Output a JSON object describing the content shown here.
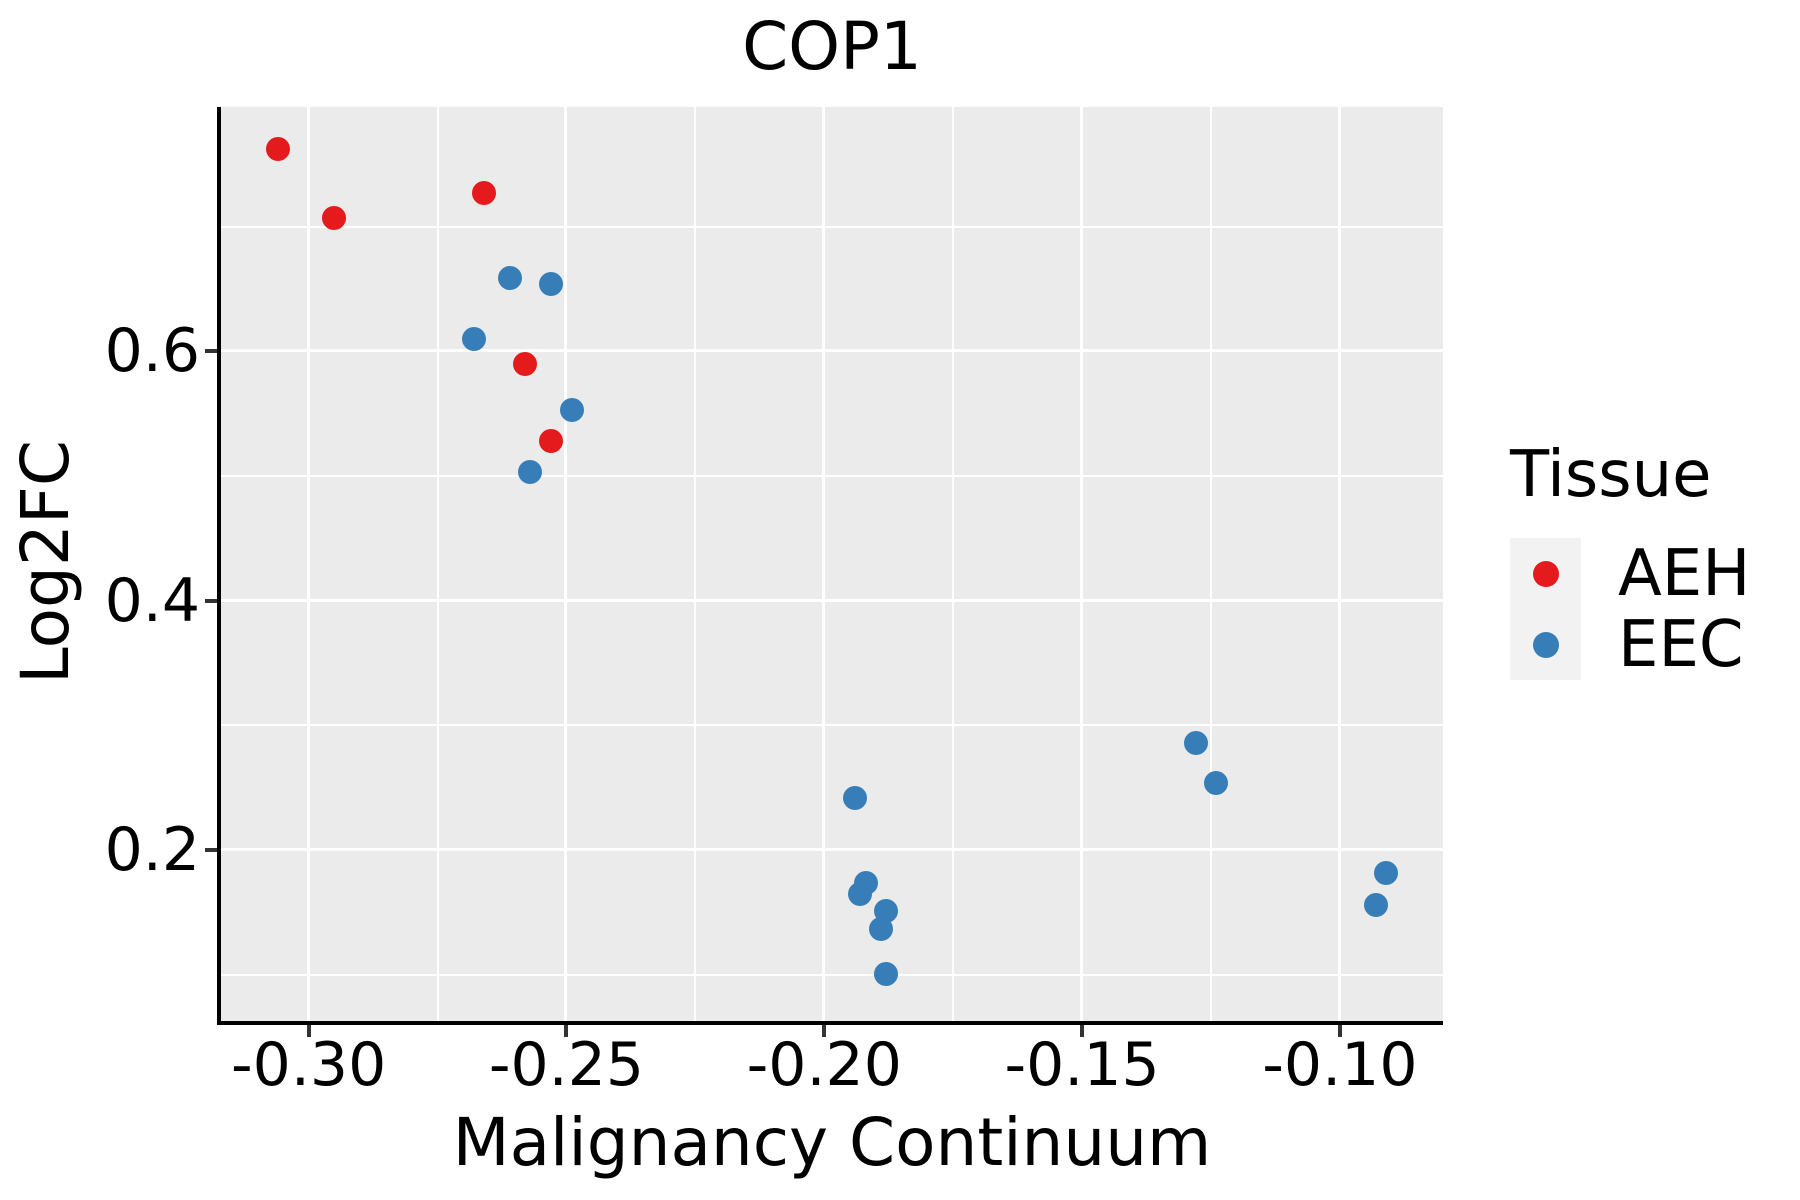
{
  "title": "COP1",
  "legend": {
    "title": "Tissue",
    "entries": [
      {
        "label": "AEH",
        "color": "#E41A1C"
      },
      {
        "label": "EEC",
        "color": "#377EB8"
      }
    ]
  },
  "colors": {
    "panel_background": "#EBEBEB",
    "gridline": "#FFFFFF",
    "axis_line": "#000000",
    "legend_key_background": "#F2F2F2",
    "aeh": "#E41A1C",
    "eec": "#377EB8"
  },
  "chart_data": {
    "type": "scatter",
    "title": "COP1",
    "xlabel": "Malignancy Continuum",
    "ylabel": "Log2FC",
    "xlim": [
      -0.317,
      -0.08
    ],
    "ylim": [
      0.063,
      0.796
    ],
    "x_ticks": [
      -0.3,
      -0.25,
      -0.2,
      -0.15,
      -0.1
    ],
    "x_tick_labels": [
      "-0.30",
      "-0.25",
      "-0.20",
      "-0.15",
      "-0.10"
    ],
    "x_minor_ticks": [
      -0.275,
      -0.225,
      -0.175,
      -0.125
    ],
    "y_ticks": [
      0.2,
      0.4,
      0.6
    ],
    "y_tick_labels": [
      "0.2",
      "0.4",
      "0.6"
    ],
    "y_minor_ticks": [
      0.1,
      0.3,
      0.5,
      0.7
    ],
    "grid": "major+minor",
    "legend_position": "right",
    "series": [
      {
        "name": "AEH",
        "color": "#E41A1C",
        "points": [
          [
            -0.306,
            0.762
          ],
          [
            -0.295,
            0.707
          ],
          [
            -0.266,
            0.727
          ],
          [
            -0.258,
            0.59
          ],
          [
            -0.253,
            0.528
          ]
        ]
      },
      {
        "name": "EEC",
        "color": "#377EB8",
        "points": [
          [
            -0.268,
            0.61
          ],
          [
            -0.261,
            0.659
          ],
          [
            -0.253,
            0.654
          ],
          [
            -0.249,
            0.553
          ],
          [
            -0.257,
            0.503
          ],
          [
            -0.194,
            0.242
          ],
          [
            -0.192,
            0.174
          ],
          [
            -0.193,
            0.165
          ],
          [
            -0.188,
            0.151
          ],
          [
            -0.189,
            0.137
          ],
          [
            -0.188,
            0.101
          ],
          [
            -0.128,
            0.286
          ],
          [
            -0.124,
            0.254
          ],
          [
            -0.091,
            0.182
          ],
          [
            -0.093,
            0.156
          ]
        ]
      }
    ]
  }
}
